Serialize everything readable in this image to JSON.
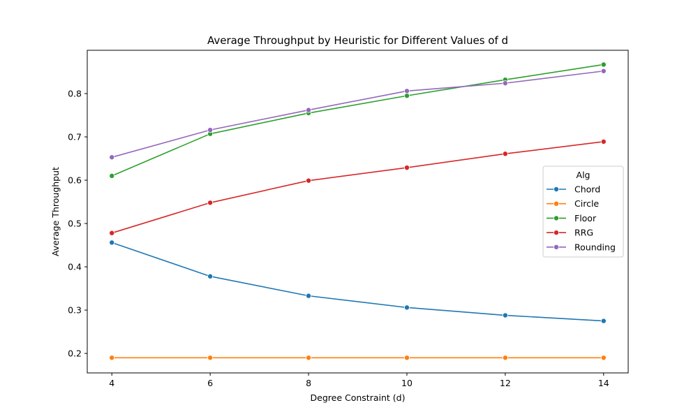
{
  "chart_data": {
    "type": "line",
    "title": "Average Throughput by Heuristic for Different Values of d",
    "xlabel": "Degree Constraint (d)",
    "ylabel": "Average Throughput",
    "x": [
      4,
      6,
      8,
      10,
      12,
      14
    ],
    "xticks": [
      4,
      6,
      8,
      10,
      12,
      14
    ],
    "yticks": [
      0.2,
      0.3,
      0.4,
      0.5,
      0.6,
      0.7,
      0.8
    ],
    "xlim": [
      3.5,
      14.5
    ],
    "ylim": [
      0.155,
      0.9
    ],
    "grid": false,
    "legend": {
      "title": "Alg",
      "placement": "center-right"
    },
    "series": [
      {
        "name": "Chord",
        "color": "#1f77b4",
        "values": [
          0.456,
          0.378,
          0.333,
          0.306,
          0.288,
          0.275
        ]
      },
      {
        "name": "Circle",
        "color": "#ff7f0e",
        "values": [
          0.19,
          0.19,
          0.19,
          0.19,
          0.19,
          0.19
        ]
      },
      {
        "name": "Floor",
        "color": "#2ca02c",
        "values": [
          0.61,
          0.707,
          0.755,
          0.795,
          0.832,
          0.867
        ]
      },
      {
        "name": "RRG",
        "color": "#d62728",
        "values": [
          0.478,
          0.548,
          0.599,
          0.629,
          0.661,
          0.689
        ]
      },
      {
        "name": "Rounding",
        "color": "#9467bd",
        "values": [
          0.653,
          0.716,
          0.762,
          0.806,
          0.824,
          0.852
        ]
      }
    ]
  }
}
